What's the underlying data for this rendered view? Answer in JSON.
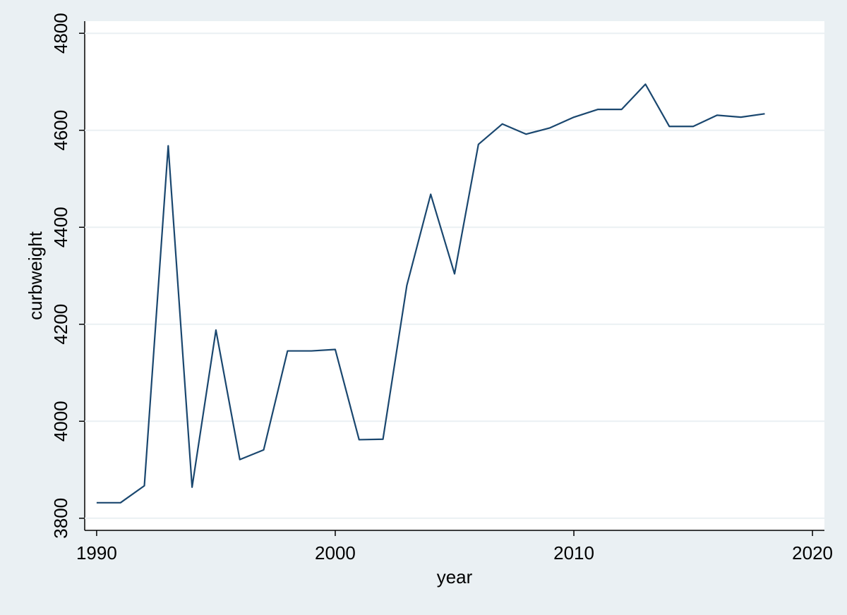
{
  "chart_data": {
    "type": "line",
    "x_label": "year",
    "y_label": "curbweight",
    "x": [
      1990,
      1991,
      1992,
      1993,
      1994,
      1995,
      1996,
      1997,
      1998,
      1999,
      2000,
      2001,
      2002,
      2003,
      2004,
      2005,
      2006,
      2007,
      2008,
      2009,
      2010,
      2011,
      2012,
      2013,
      2014,
      2015,
      2016,
      2017,
      2018
    ],
    "series": [
      {
        "name": "curbweight",
        "color": "#1a476f",
        "values": [
          3832,
          3832,
          3867,
          4568,
          3864,
          4188,
          3921,
          3941,
          4145,
          4145,
          4148,
          3962,
          3963,
          4280,
          4468,
          4304,
          4571,
          4613,
          4592,
          4605,
          4627,
          4643,
          4643,
          4695,
          4608,
          4608,
          4631,
          4627,
          4634
        ]
      }
    ],
    "xlim": [
      1989.5,
      2020.5
    ],
    "xticks": [
      1990,
      2000,
      2010,
      2020
    ],
    "ylim": [
      3775,
      4825
    ],
    "yticks": [
      3800,
      4000,
      4200,
      4400,
      4600,
      4800
    ],
    "grid": true
  }
}
